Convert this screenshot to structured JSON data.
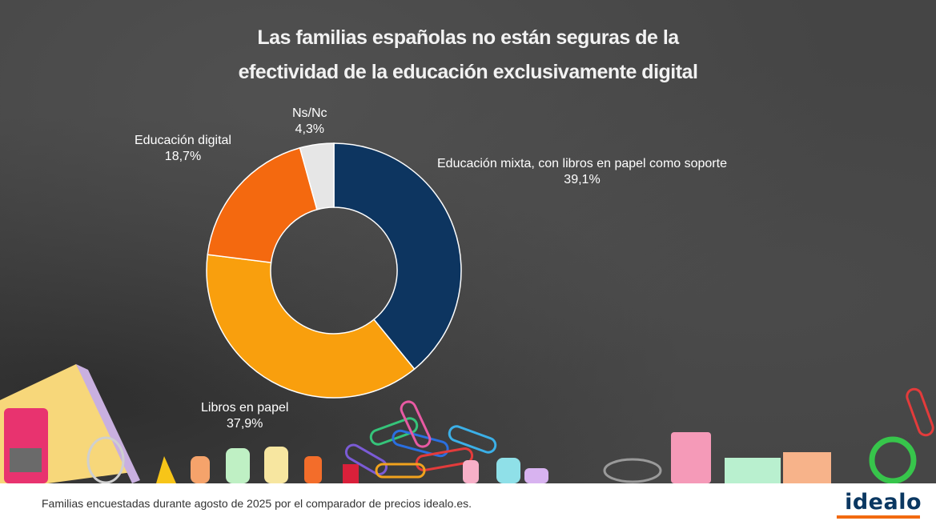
{
  "title": {
    "line1": "Las familias españolas no están seguras de la",
    "line2": "efectividad de la educación exclusivamente digital"
  },
  "chart_data": {
    "type": "pie",
    "donut": true,
    "title": "Las familias españolas no están seguras de la efectividad de la educación exclusivamente digital",
    "slices": [
      {
        "label": "Educación mixta, con libros en papel como soporte",
        "value": 39.1,
        "display": "39,1%",
        "color": "#0d3560"
      },
      {
        "label": "Libros en papel",
        "value": 37.9,
        "display": "37,9%",
        "color": "#f99f0d"
      },
      {
        "label": "Educación digital",
        "value": 18.7,
        "display": "18,7%",
        "color": "#f4690f"
      },
      {
        "label": "Ns/Nc",
        "value": 4.3,
        "display": "4,3%",
        "color": "#e6e6e6"
      }
    ]
  },
  "footer": {
    "note": "Familias encuestadas durante agosto de 2025 por el comparador de precios idealo.es.",
    "logo": "idealo",
    "logo_color": "#0a3761",
    "logo_accent": "#f26a10"
  }
}
